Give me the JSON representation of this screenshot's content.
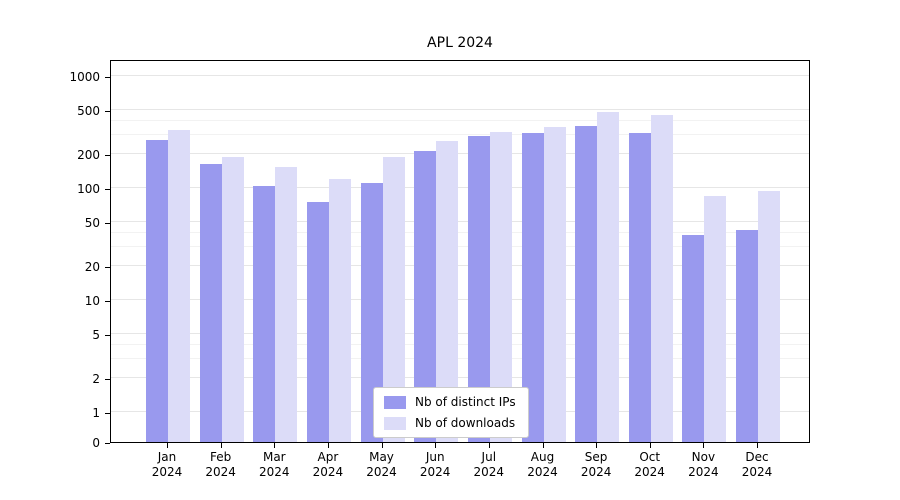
{
  "title": "APL 2024",
  "chart_data": {
    "type": "bar",
    "title": "APL 2024",
    "categories": [
      "Jan",
      "Feb",
      "Mar",
      "Apr",
      "May",
      "Jun",
      "Jul",
      "Aug",
      "Sep",
      "Oct",
      "Nov",
      "Dec"
    ],
    "year_label": "2024",
    "series": [
      {
        "name": "Nb of distinct IPs",
        "color": "#9999ee",
        "values": [
          270,
          165,
          105,
          75,
          110,
          215,
          290,
          310,
          355,
          310,
          38,
          42
        ]
      },
      {
        "name": "Nb of downloads",
        "color": "#dcdcf8",
        "values": [
          330,
          190,
          155,
          120,
          190,
          265,
          315,
          350,
          480,
          445,
          85,
          95
        ]
      }
    ],
    "yscale": "symlog",
    "yticks": [
      0,
      1,
      2,
      5,
      10,
      20,
      50,
      100,
      200,
      500,
      1000
    ],
    "yticks_minor": [
      3,
      4,
      30,
      40,
      300,
      400
    ],
    "ylim": [
      0,
      1400
    ],
    "grid": true,
    "legend_position": "lower center"
  }
}
